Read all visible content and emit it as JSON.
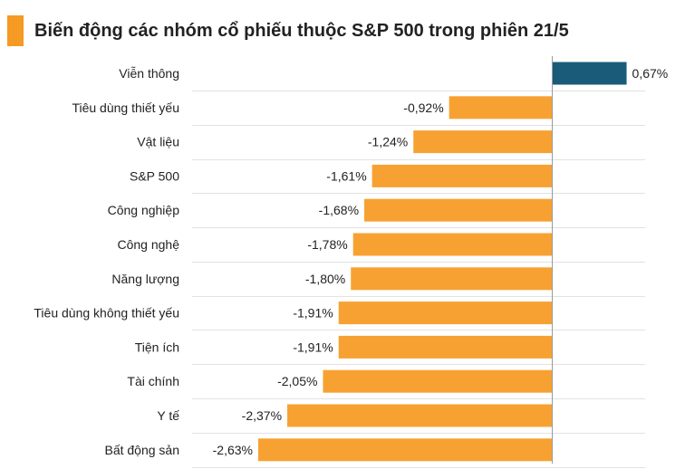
{
  "title": "Biến động các nhóm cổ phiếu thuộc S&P 500 trong phiên 21/5",
  "colors": {
    "positive": "#1b5b7a",
    "negative": "#f7a132",
    "accent": "#f59a23",
    "grid": "#e2e2e2"
  },
  "chart_data": {
    "type": "bar",
    "orientation": "horizontal",
    "title": "Biến động các nhóm cổ phiếu thuộc S&P 500 trong phiên 21/5",
    "categories": [
      "Viễn thông",
      "Tiêu dùng thiết yếu",
      "Vật liệu",
      "S&P 500",
      "Công nghiệp",
      "Công nghệ",
      "Năng lượng",
      "Tiêu dùng không thiết yếu",
      "Tiện ích",
      "Tài chính",
      "Y tế",
      "Bất động sản"
    ],
    "values": [
      0.67,
      -0.92,
      -1.24,
      -1.61,
      -1.68,
      -1.78,
      -1.8,
      -1.91,
      -1.91,
      -2.05,
      -2.37,
      -2.63
    ],
    "value_labels": [
      "0,67%",
      "-0,92%",
      "-1,24%",
      "-1,61%",
      "-1,68%",
      "-1,78%",
      "-1,80%",
      "-1,91%",
      "-1,91%",
      "-2,05%",
      "-2,37%",
      "-2,63%"
    ],
    "xlim": [
      -2.63,
      0.67
    ],
    "grid": true
  }
}
